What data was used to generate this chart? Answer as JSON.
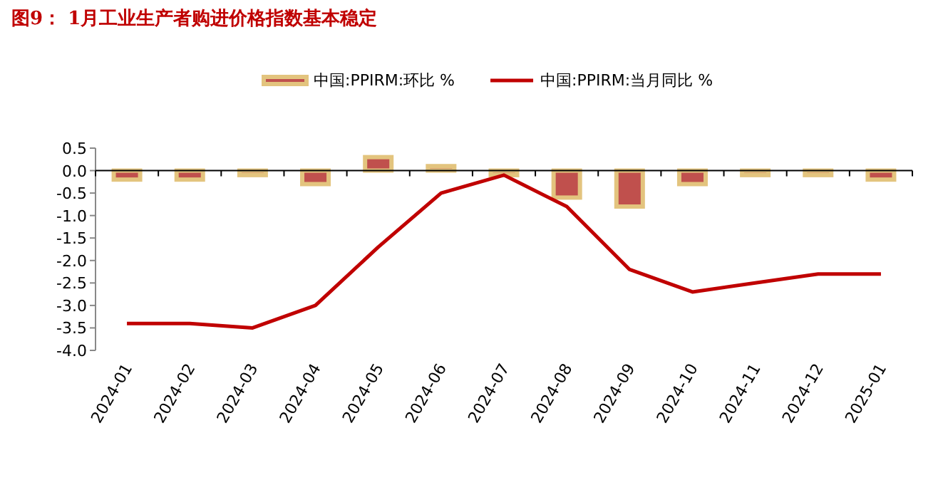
{
  "chart_data": {
    "type": "bar",
    "title": "图9：  1月工业生产者购进价格指数基本稳定",
    "categories": [
      "2024-01",
      "2024-02",
      "2024-03",
      "2024-04",
      "2024-05",
      "2024-06",
      "2024-07",
      "2024-08",
      "2024-09",
      "2024-10",
      "2024-11",
      "2024-12",
      "2025-01"
    ],
    "series": [
      {
        "name": "中国:PPIRM:环比 %",
        "color": "#c0504d",
        "values": [
          -0.2,
          -0.2,
          -0.1,
          -0.3,
          0.3,
          0.1,
          -0.1,
          -0.6,
          -0.8,
          -0.3,
          -0.1,
          -0.1,
          -0.2
        ]
      },
      {
        "name": "中国:PPIRM:当月同比 %",
        "type": "line",
        "color": "#c00000",
        "values": [
          -3.4,
          -3.4,
          -3.5,
          -3.0,
          -1.7,
          -0.5,
          -0.1,
          -0.8,
          -2.2,
          -2.7,
          -2.5,
          -2.3,
          -2.3
        ]
      }
    ],
    "ylim": [
      -4.0,
      0.5
    ],
    "yticks": [
      {
        "value": 0.5,
        "label": "0.5"
      },
      {
        "value": 0.0,
        "label": "0.0"
      },
      {
        "value": -0.5,
        "label": "-0.5"
      },
      {
        "value": -1.0,
        "label": "-1.0"
      },
      {
        "value": -1.5,
        "label": "-1.5"
      },
      {
        "value": -2.0,
        "label": "-2.0"
      },
      {
        "value": -2.5,
        "label": "-2.5"
      },
      {
        "value": -3.0,
        "label": "-3.0"
      },
      {
        "value": -3.5,
        "label": "-3.5"
      },
      {
        "value": -4.0,
        "label": "-4.0"
      }
    ],
    "legend": "top"
  }
}
